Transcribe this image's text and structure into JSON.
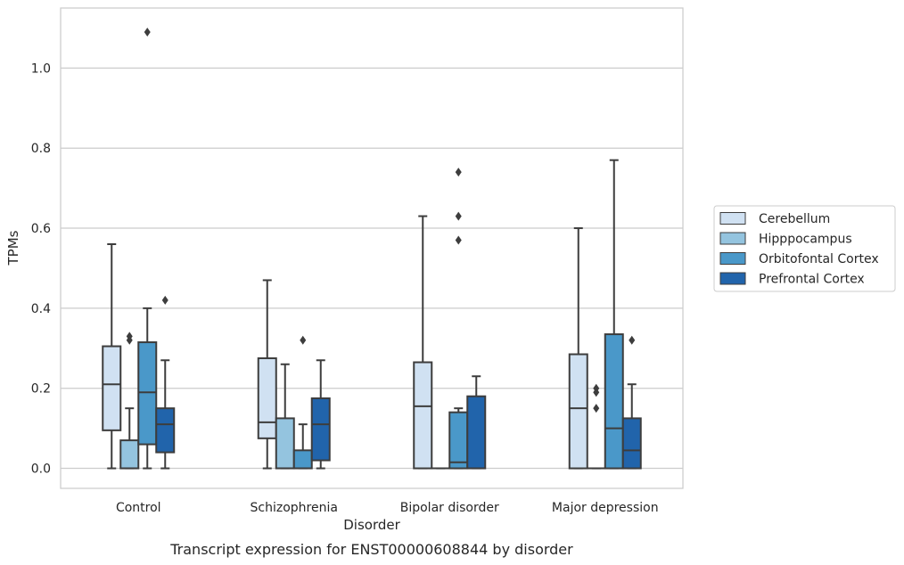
{
  "chart_data": {
    "type": "box",
    "title": "",
    "caption": "Transcript expression for ENST00000608844 by disorder",
    "xlabel": "Disorder",
    "ylabel": "TPMs",
    "ylim": [
      -0.05,
      1.15
    ],
    "yticks": [
      "0.0",
      "0.2",
      "0.4",
      "0.6",
      "0.8",
      "1.0"
    ],
    "grid": "horizontal",
    "legend_position": "right",
    "categories": [
      "Control",
      "Schizophrenia",
      "Bipolar disorder",
      "Major depression"
    ],
    "series": [
      {
        "name": "Cerebellum",
        "color": "#d0e1f2",
        "boxes": [
          {
            "whislo": 0.0,
            "q1": 0.095,
            "med": 0.21,
            "q3": 0.305,
            "whishi": 0.56,
            "fliers": []
          },
          {
            "whislo": 0.0,
            "q1": 0.075,
            "med": 0.115,
            "q3": 0.275,
            "whishi": 0.47,
            "fliers": []
          },
          {
            "whislo": 0.0,
            "q1": 0.0,
            "med": 0.155,
            "q3": 0.265,
            "whishi": 0.63,
            "fliers": []
          },
          {
            "whislo": 0.0,
            "q1": 0.0,
            "med": 0.15,
            "q3": 0.285,
            "whishi": 0.6,
            "fliers": []
          }
        ]
      },
      {
        "name": "Hipppocampus",
        "color": "#94c4df",
        "boxes": [
          {
            "whislo": 0.0,
            "q1": 0.0,
            "med": 0.0,
            "q3": 0.07,
            "whishi": 0.15,
            "fliers": [
              0.32,
              0.33
            ]
          },
          {
            "whislo": 0.0,
            "q1": 0.0,
            "med": 0.0,
            "q3": 0.125,
            "whishi": 0.26,
            "fliers": []
          },
          {
            "whislo": 0.0,
            "q1": 0.0,
            "med": 0.0,
            "q3": 0.0,
            "whishi": 0.0,
            "fliers": []
          },
          {
            "whislo": 0.0,
            "q1": 0.0,
            "med": 0.0,
            "q3": 0.0,
            "whishi": 0.0,
            "fliers": [
              0.15,
              0.19,
              0.2
            ]
          }
        ]
      },
      {
        "name": "Orbitofontal Cortex",
        "color": "#4a98c9",
        "boxes": [
          {
            "whislo": 0.0,
            "q1": 0.06,
            "med": 0.19,
            "q3": 0.315,
            "whishi": 0.4,
            "fliers": [
              1.09
            ]
          },
          {
            "whislo": 0.0,
            "q1": 0.0,
            "med": 0.0,
            "q3": 0.045,
            "whishi": 0.11,
            "fliers": [
              0.32
            ]
          },
          {
            "whislo": 0.0,
            "q1": 0.0,
            "med": 0.015,
            "q3": 0.14,
            "whishi": 0.15,
            "fliers": [
              0.57,
              0.63,
              0.74
            ]
          },
          {
            "whislo": 0.0,
            "q1": 0.0,
            "med": 0.1,
            "q3": 0.335,
            "whishi": 0.77,
            "fliers": []
          }
        ]
      },
      {
        "name": "Prefrontal Cortex",
        "color": "#2164ab",
        "boxes": [
          {
            "whislo": 0.0,
            "q1": 0.04,
            "med": 0.11,
            "q3": 0.15,
            "whishi": 0.27,
            "fliers": [
              0.42
            ]
          },
          {
            "whislo": 0.0,
            "q1": 0.02,
            "med": 0.11,
            "q3": 0.175,
            "whishi": 0.27,
            "fliers": []
          },
          {
            "whislo": 0.0,
            "q1": 0.0,
            "med": 0.0,
            "q3": 0.18,
            "whishi": 0.23,
            "fliers": []
          },
          {
            "whislo": 0.0,
            "q1": 0.0,
            "med": 0.045,
            "q3": 0.125,
            "whishi": 0.21,
            "fliers": [
              0.32
            ]
          }
        ]
      }
    ]
  }
}
